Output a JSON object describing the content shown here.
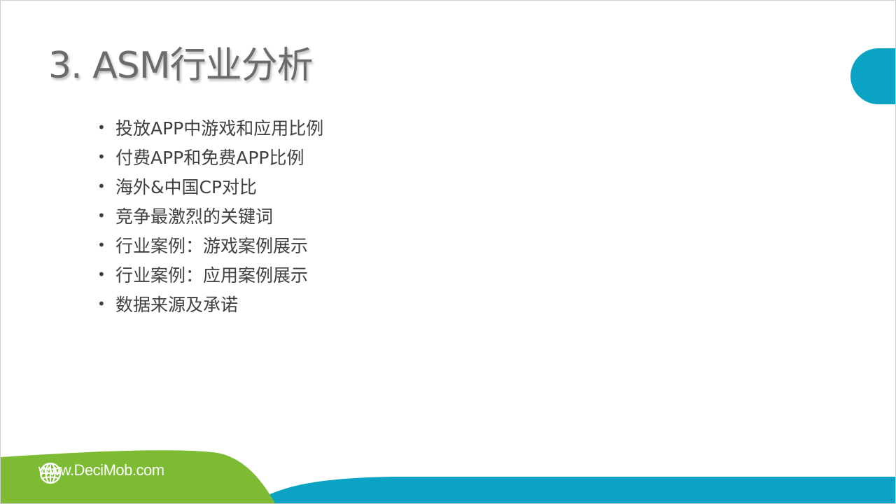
{
  "slide": {
    "title": "3. ASM行业分析",
    "bullet_symbol": "•",
    "bullets": [
      "投放APP中游戏和应用比例",
      "付费APP和免费APP比例",
      "海外&中国CP对比",
      "竞争最激烈的关键词",
      "行业案例：游戏案例展示",
      "行业案例：应用案例展示",
      "数据来源及承诺"
    ]
  },
  "footer": {
    "url": "www.DeciMob.com",
    "icon": "globe-icon"
  },
  "colors": {
    "teal": "#0ba3c4",
    "green": "#7cbb32",
    "title_gray": "#6b6b6b",
    "text_dark": "#404040"
  }
}
